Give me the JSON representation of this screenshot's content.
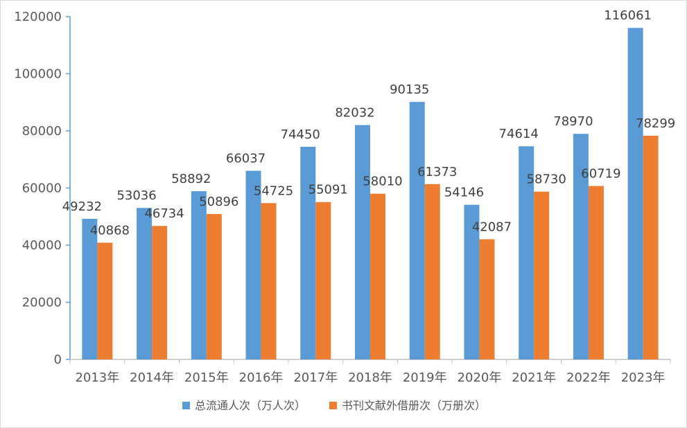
{
  "chart_data": {
    "type": "bar",
    "title": "",
    "xlabel": "",
    "ylabel": "",
    "categories": [
      "2013年",
      "2014年",
      "2015年",
      "2016年",
      "2017年",
      "2018年",
      "2019年",
      "2020年",
      "2021年",
      "2022年",
      "2023年"
    ],
    "series": [
      {
        "name": "总流通人次（万人次）",
        "color": "#5b9bd5",
        "values": [
          49232,
          53036,
          58892,
          66037,
          74450,
          82032,
          90135,
          54146,
          74614,
          78970,
          116061
        ]
      },
      {
        "name": "书刊文献外借册次（万册次）",
        "color": "#ed7d31",
        "values": [
          40868,
          46734,
          50896,
          54725,
          55091,
          58010,
          61373,
          42087,
          58730,
          60719,
          78299
        ]
      }
    ],
    "ylim": [
      0,
      120000
    ],
    "yticks": [
      "0",
      "20000",
      "40000",
      "60000",
      "80000",
      "100000",
      "120000"
    ],
    "grid": false,
    "legend": "bottom",
    "data_labels": true
  }
}
